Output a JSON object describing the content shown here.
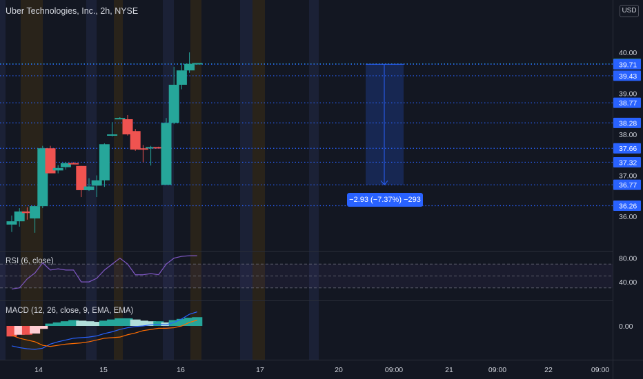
{
  "header": {
    "title": "Uber Technologies, Inc., 2h, NYSE",
    "currency": "USD"
  },
  "measure": {
    "label": "−2.93 (−7.37%) −293"
  },
  "chart_data": [
    {
      "type": "candlestick",
      "title": "Uber Technologies, Inc., 2h, NYSE",
      "x_ticks": [
        "14",
        "15",
        "16",
        "17",
        "20",
        "09:00",
        "21",
        "09:00",
        "22",
        "09:00"
      ],
      "y_ticks": [
        "36.00",
        "37.00",
        "38.00",
        "39.00",
        "40.00"
      ],
      "ylim": [
        35.7,
        40.25
      ],
      "candles": [
        {
          "o": 35.8,
          "h": 36.02,
          "l": 35.62,
          "c": 35.88
        },
        {
          "o": 35.88,
          "h": 36.2,
          "l": 35.75,
          "c": 36.12
        },
        {
          "o": 36.12,
          "h": 36.22,
          "l": 35.92,
          "c": 36.08
        },
        {
          "o": 35.95,
          "h": 36.25,
          "l": 35.6,
          "c": 36.25
        },
        {
          "o": 36.25,
          "h": 37.72,
          "l": 36.2,
          "c": 37.66
        },
        {
          "o": 37.66,
          "h": 37.72,
          "l": 37.05,
          "c": 37.05
        },
        {
          "o": 37.12,
          "h": 37.25,
          "l": 37.05,
          "c": 37.18
        },
        {
          "o": 37.2,
          "h": 37.32,
          "l": 37.14,
          "c": 37.3
        },
        {
          "o": 37.3,
          "h": 37.32,
          "l": 37.27,
          "c": 37.29
        },
        {
          "o": 37.23,
          "h": 37.23,
          "l": 36.47,
          "c": 36.64
        },
        {
          "o": 36.64,
          "h": 36.93,
          "l": 36.62,
          "c": 36.73
        },
        {
          "o": 36.75,
          "h": 37.0,
          "l": 36.47,
          "c": 36.88
        },
        {
          "o": 36.88,
          "h": 37.78,
          "l": 36.72,
          "c": 37.76
        },
        {
          "o": 38.0,
          "h": 38.3,
          "l": 37.95,
          "c": 38.0
        },
        {
          "o": 38.4,
          "h": 38.42,
          "l": 38.38,
          "c": 38.4
        },
        {
          "o": 38.37,
          "h": 38.47,
          "l": 37.97,
          "c": 38.0
        },
        {
          "o": 38.08,
          "h": 38.13,
          "l": 37.6,
          "c": 37.63
        },
        {
          "o": 37.66,
          "h": 37.74,
          "l": 37.32,
          "c": 37.64
        },
        {
          "o": 37.66,
          "h": 37.72,
          "l": 37.24,
          "c": 37.69
        },
        {
          "o": 37.69,
          "h": 37.7,
          "l": 37.66,
          "c": 37.66
        },
        {
          "o": 36.77,
          "h": 38.4,
          "l": 36.77,
          "c": 38.28
        },
        {
          "o": 38.28,
          "h": 39.65,
          "l": 38.25,
          "c": 39.21
        },
        {
          "o": 39.21,
          "h": 39.74,
          "l": 39.1,
          "c": 39.56
        },
        {
          "o": 39.56,
          "h": 40.0,
          "l": 39.5,
          "c": 39.72
        },
        {
          "o": 39.72,
          "h": 39.74,
          "l": 39.7,
          "c": 39.74
        }
      ],
      "price_levels": [
        {
          "value": 39.72,
          "label": "39.72",
          "color": "#26a69a"
        },
        {
          "value": 39.71,
          "label": "39.71",
          "color": "#2962ff"
        },
        {
          "value": 39.43,
          "label": "39.43",
          "color": "#2962ff"
        },
        {
          "value": 38.77,
          "label": "38.77",
          "color": "#2962ff"
        },
        {
          "value": 38.28,
          "label": "38.28",
          "color": "#2962ff"
        },
        {
          "value": 37.66,
          "label": "37.66",
          "color": "#2962ff"
        },
        {
          "value": 37.32,
          "label": "37.32",
          "color": "#2962ff"
        },
        {
          "value": 36.77,
          "label": "36.77",
          "color": "#2962ff"
        },
        {
          "value": 36.26,
          "label": "36.26",
          "color": "#2962ff"
        }
      ],
      "colors": {
        "up": "#26a69a",
        "down": "#ef5350",
        "level": "#2962ff"
      }
    },
    {
      "type": "line",
      "title": "RSI (6, close)",
      "y_ticks": [
        "80.00",
        "40.00"
      ],
      "ylim": [
        0,
        100
      ],
      "bands": [
        30,
        50,
        70
      ],
      "values": [
        28,
        30,
        45,
        55,
        72,
        60,
        62,
        60,
        60,
        40,
        40,
        46,
        60,
        70,
        80,
        70,
        52,
        52,
        54,
        52,
        70,
        80,
        83,
        84,
        84
      ],
      "color": "#7e57c2"
    },
    {
      "type": "bar",
      "title": "MACD (12, 26, close, 9, EMA, EMA)",
      "y_ticks": [
        "0.00"
      ],
      "ylim": [
        -0.42,
        0.37
      ],
      "histogram": [
        -0.18,
        -0.15,
        -0.15,
        -0.13,
        -0.05,
        0.04,
        0.06,
        0.08,
        0.1,
        0.09,
        0.08,
        0.07,
        0.09,
        0.11,
        0.13,
        0.13,
        0.11,
        0.09,
        0.08,
        0.08,
        0.06,
        0.1,
        0.12,
        0.14,
        0.15
      ],
      "macd": [
        -0.34,
        -0.37,
        -0.39,
        -0.4,
        -0.38,
        -0.31,
        -0.27,
        -0.24,
        -0.21,
        -0.2,
        -0.19,
        -0.17,
        -0.13,
        -0.1,
        -0.06,
        -0.03,
        -0.01,
        0.0,
        0.02,
        0.03,
        0.02,
        0.06,
        0.12,
        0.2,
        0.24
      ],
      "signal": [
        -0.16,
        -0.21,
        -0.24,
        -0.27,
        -0.33,
        -0.35,
        -0.33,
        -0.31,
        -0.3,
        -0.29,
        -0.27,
        -0.24,
        -0.21,
        -0.2,
        -0.19,
        -0.15,
        -0.12,
        -0.08,
        -0.06,
        -0.04,
        -0.04,
        -0.03,
        0.0,
        0.06,
        0.1
      ],
      "colors": {
        "hist_pos": "#26a69a",
        "hist_pos_light": "#b2dfdb",
        "hist_neg": "#ef5350",
        "hist_neg_light": "#ffcdd2",
        "macd": "#2962ff",
        "signal": "#ff6d00"
      }
    }
  ]
}
